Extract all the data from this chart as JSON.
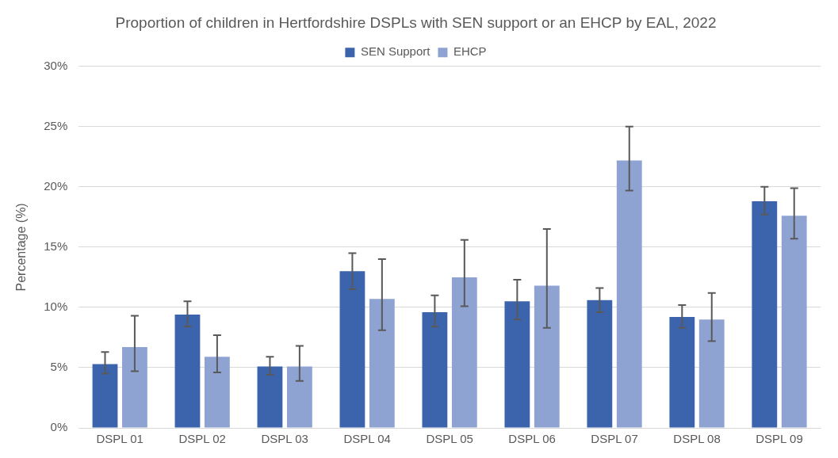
{
  "chart_data": {
    "type": "bar",
    "title": "Proportion of children in Hertfordshire DSPLs with SEN support or an EHCP by EAL, 2022",
    "ylabel": "Percentage (%)",
    "categories": [
      "DSPL 01",
      "DSPL 02",
      "DSPL 03",
      "DSPL 04",
      "DSPL 05",
      "DSPL 06",
      "DSPL 07",
      "DSPL 08",
      "DSPL 09"
    ],
    "series": [
      {
        "name": "SEN Support",
        "color": "#3c64ad",
        "values": [
          5.3,
          9.4,
          5.1,
          13.0,
          9.6,
          10.5,
          10.6,
          9.2,
          18.8
        ],
        "errors": [
          [
            4.5,
            6.3
          ],
          [
            8.4,
            10.5
          ],
          [
            4.4,
            5.9
          ],
          [
            11.5,
            14.5
          ],
          [
            8.4,
            11.0
          ],
          [
            9.0,
            12.3
          ],
          [
            9.6,
            11.6
          ],
          [
            8.3,
            10.2
          ],
          [
            17.7,
            20.0
          ]
        ]
      },
      {
        "name": "EHCP",
        "color": "#8fa3d3",
        "values": [
          6.7,
          5.9,
          5.1,
          10.7,
          12.5,
          11.8,
          22.2,
          9.0,
          17.6
        ],
        "errors": [
          [
            4.7,
            9.3
          ],
          [
            4.6,
            7.7
          ],
          [
            3.9,
            6.8
          ],
          [
            8.1,
            14.0
          ],
          [
            10.1,
            15.6
          ],
          [
            8.3,
            16.5
          ],
          [
            19.7,
            25.0
          ],
          [
            7.2,
            11.2
          ],
          [
            15.7,
            19.9
          ]
        ]
      }
    ],
    "ylim": [
      0,
      30
    ],
    "yticks": [
      {
        "value": 0,
        "label": "0%"
      },
      {
        "value": 5,
        "label": "5%"
      },
      {
        "value": 10,
        "label": "10%"
      },
      {
        "value": 15,
        "label": "15%"
      },
      {
        "value": 20,
        "label": "20%"
      },
      {
        "value": 25,
        "label": "25%"
      },
      {
        "value": 30,
        "label": "30%"
      }
    ],
    "grid": "y",
    "legend": "top"
  }
}
